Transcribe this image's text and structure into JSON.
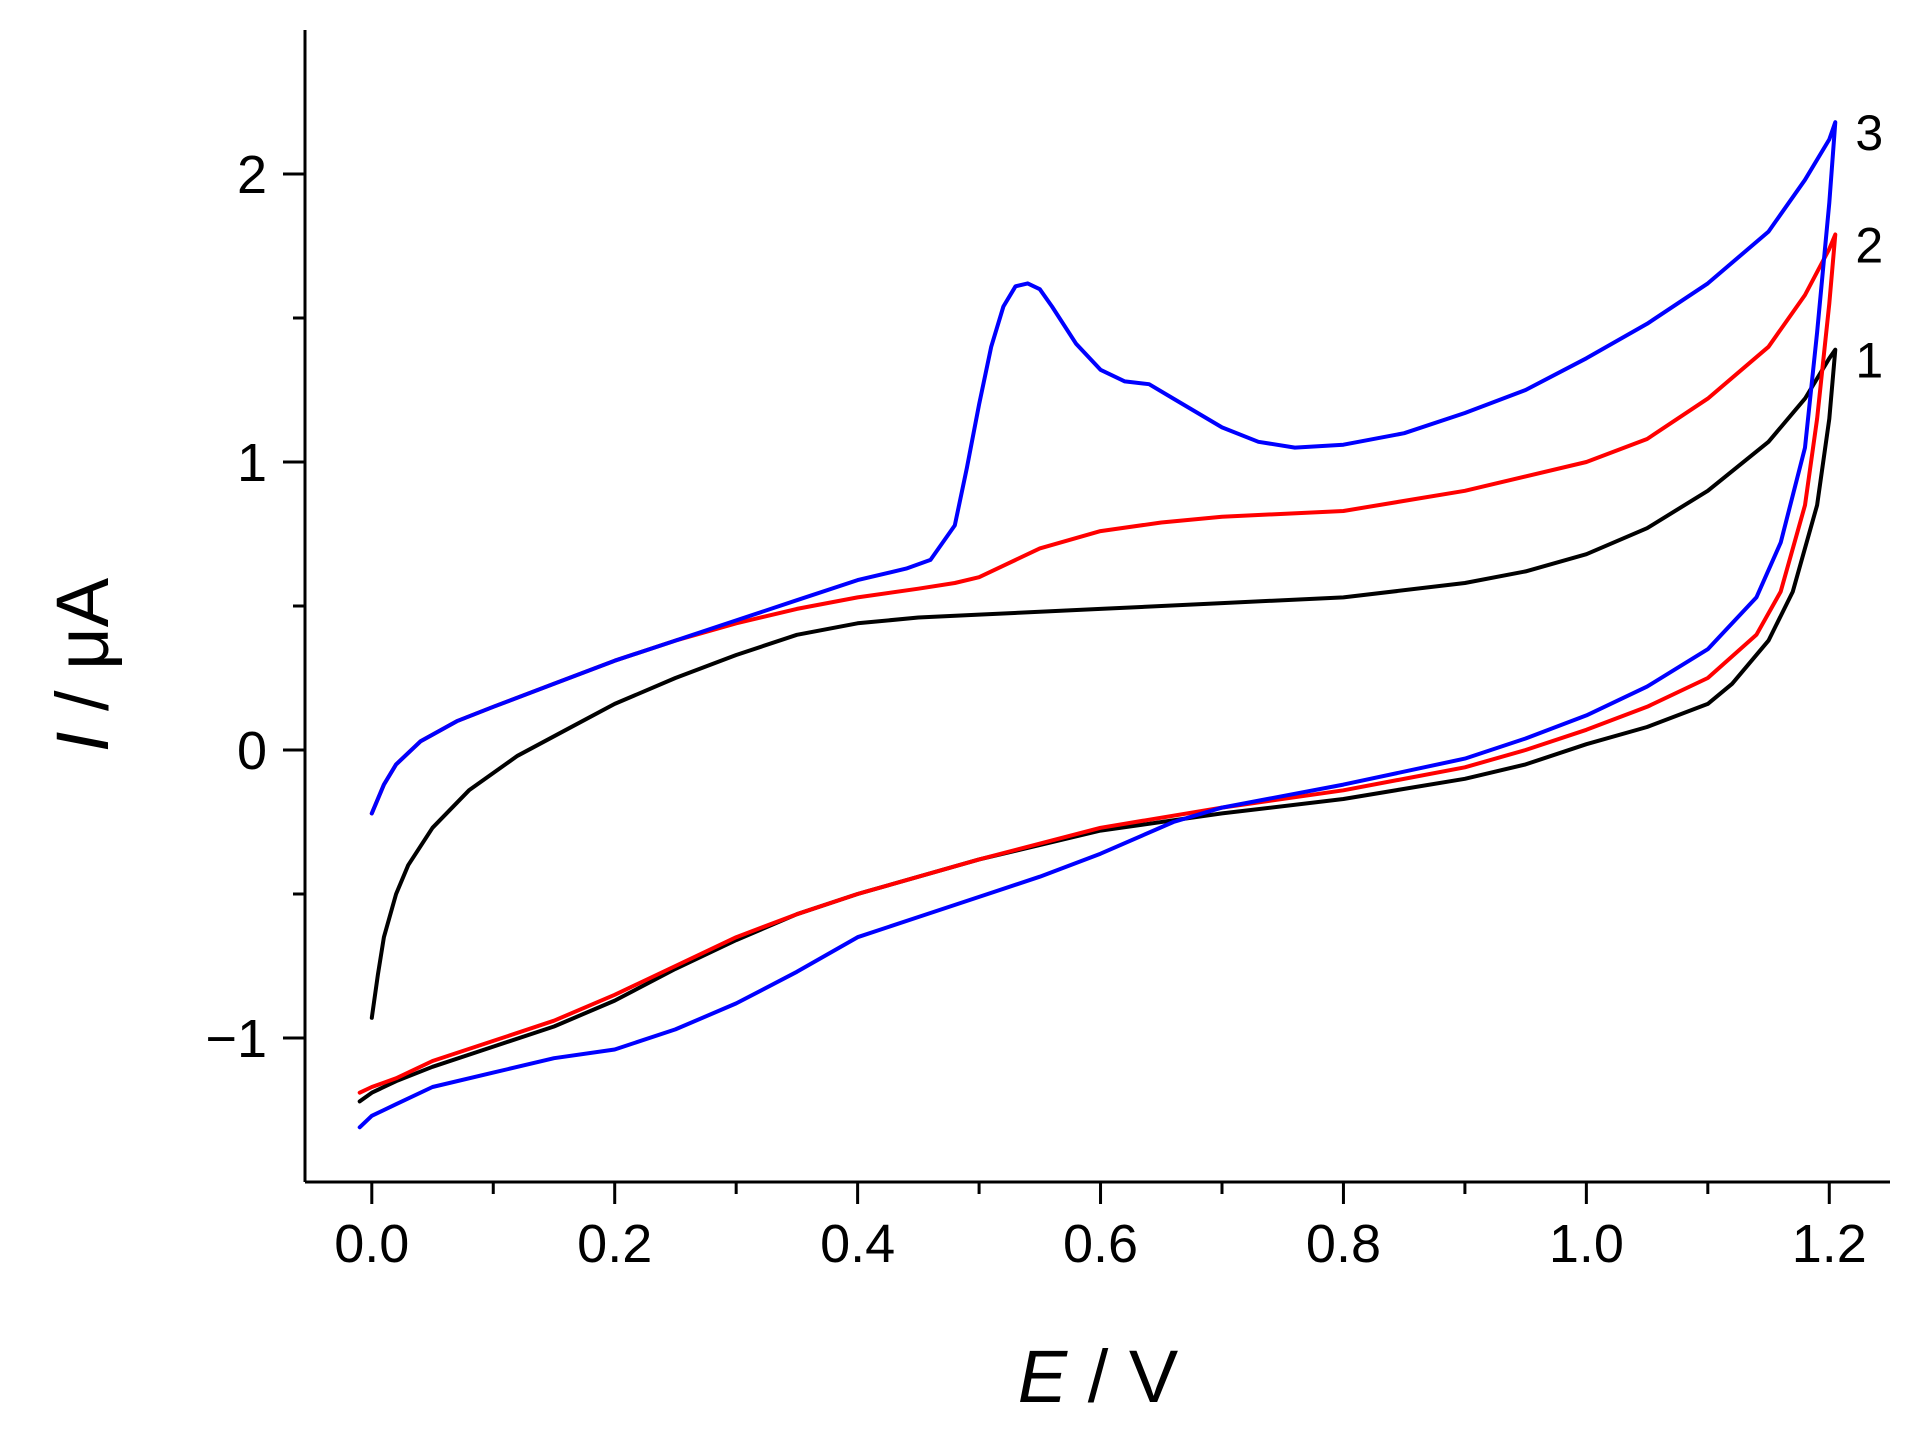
{
  "chart_data": {
    "type": "line",
    "title": "",
    "xlabel": {
      "var": "E",
      "unit": " / V"
    },
    "ylabel": {
      "var": "I",
      "unit": " / μA"
    },
    "xlim": [
      -0.055,
      1.25
    ],
    "ylim": [
      -1.5,
      2.5
    ],
    "x_ticks": [
      {
        "value": 0.0,
        "label": "0.0"
      },
      {
        "value": 0.2,
        "label": "0.2"
      },
      {
        "value": 0.4,
        "label": "0.4"
      },
      {
        "value": 0.6,
        "label": "0.6"
      },
      {
        "value": 0.8,
        "label": "0.8"
      },
      {
        "value": 1.0,
        "label": "1.0"
      },
      {
        "value": 1.2,
        "label": "1.2"
      }
    ],
    "x_minor_ticks": [
      0.1,
      0.3,
      0.5,
      0.7,
      0.9,
      1.1
    ],
    "y_ticks": [
      {
        "value": -1,
        "label": "−1"
      },
      {
        "value": 0,
        "label": "0"
      },
      {
        "value": 1,
        "label": "1"
      },
      {
        "value": 2,
        "label": "2"
      }
    ],
    "y_minor_ticks": [
      -0.5,
      0.5,
      1.5
    ],
    "grid": false,
    "series": [
      {
        "name": "1",
        "color": "#000000",
        "forward": [
          [
            0.0,
            -0.93
          ],
          [
            0.005,
            -0.78
          ],
          [
            0.01,
            -0.65
          ],
          [
            0.02,
            -0.5
          ],
          [
            0.03,
            -0.4
          ],
          [
            0.05,
            -0.27
          ],
          [
            0.08,
            -0.14
          ],
          [
            0.12,
            -0.02
          ],
          [
            0.16,
            0.07
          ],
          [
            0.2,
            0.16
          ],
          [
            0.25,
            0.25
          ],
          [
            0.3,
            0.33
          ],
          [
            0.35,
            0.4
          ],
          [
            0.4,
            0.44
          ],
          [
            0.45,
            0.46
          ],
          [
            0.5,
            0.47
          ],
          [
            0.6,
            0.49
          ],
          [
            0.7,
            0.51
          ],
          [
            0.8,
            0.53
          ],
          [
            0.9,
            0.58
          ],
          [
            0.95,
            0.62
          ],
          [
            1.0,
            0.68
          ],
          [
            1.05,
            0.77
          ],
          [
            1.1,
            0.9
          ],
          [
            1.15,
            1.07
          ],
          [
            1.18,
            1.22
          ],
          [
            1.2,
            1.36
          ],
          [
            1.205,
            1.39
          ]
        ],
        "reverse": [
          [
            1.205,
            1.39
          ],
          [
            1.2,
            1.15
          ],
          [
            1.19,
            0.85
          ],
          [
            1.17,
            0.55
          ],
          [
            1.15,
            0.38
          ],
          [
            1.12,
            0.23
          ],
          [
            1.1,
            0.16
          ],
          [
            1.05,
            0.08
          ],
          [
            1.0,
            0.02
          ],
          [
            0.95,
            -0.05
          ],
          [
            0.9,
            -0.1
          ],
          [
            0.8,
            -0.17
          ],
          [
            0.7,
            -0.22
          ],
          [
            0.6,
            -0.28
          ],
          [
            0.5,
            -0.38
          ],
          [
            0.4,
            -0.5
          ],
          [
            0.35,
            -0.57
          ],
          [
            0.3,
            -0.66
          ],
          [
            0.25,
            -0.76
          ],
          [
            0.2,
            -0.87
          ],
          [
            0.15,
            -0.96
          ],
          [
            0.1,
            -1.03
          ],
          [
            0.05,
            -1.1
          ],
          [
            0.02,
            -1.15
          ],
          [
            0.0,
            -1.19
          ],
          [
            -0.01,
            -1.22
          ]
        ]
      },
      {
        "name": "2",
        "color": "#ff0000",
        "forward": [
          [
            0.0,
            -0.22
          ],
          [
            0.01,
            -0.12
          ],
          [
            0.02,
            -0.05
          ],
          [
            0.04,
            0.03
          ],
          [
            0.07,
            0.1
          ],
          [
            0.1,
            0.15
          ],
          [
            0.15,
            0.23
          ],
          [
            0.2,
            0.31
          ],
          [
            0.25,
            0.38
          ],
          [
            0.3,
            0.44
          ],
          [
            0.35,
            0.49
          ],
          [
            0.4,
            0.53
          ],
          [
            0.45,
            0.56
          ],
          [
            0.48,
            0.58
          ],
          [
            0.5,
            0.6
          ],
          [
            0.52,
            0.64
          ],
          [
            0.55,
            0.7
          ],
          [
            0.6,
            0.76
          ],
          [
            0.65,
            0.79
          ],
          [
            0.7,
            0.81
          ],
          [
            0.8,
            0.83
          ],
          [
            0.9,
            0.9
          ],
          [
            1.0,
            1.0
          ],
          [
            1.05,
            1.08
          ],
          [
            1.1,
            1.22
          ],
          [
            1.15,
            1.4
          ],
          [
            1.18,
            1.58
          ],
          [
            1.2,
            1.74
          ],
          [
            1.205,
            1.79
          ]
        ],
        "reverse": [
          [
            1.205,
            1.79
          ],
          [
            1.2,
            1.55
          ],
          [
            1.19,
            1.15
          ],
          [
            1.18,
            0.85
          ],
          [
            1.16,
            0.55
          ],
          [
            1.14,
            0.4
          ],
          [
            1.1,
            0.25
          ],
          [
            1.05,
            0.15
          ],
          [
            1.0,
            0.07
          ],
          [
            0.95,
            0.0
          ],
          [
            0.9,
            -0.06
          ],
          [
            0.8,
            -0.14
          ],
          [
            0.7,
            -0.2
          ],
          [
            0.6,
            -0.27
          ],
          [
            0.5,
            -0.38
          ],
          [
            0.4,
            -0.5
          ],
          [
            0.35,
            -0.57
          ],
          [
            0.3,
            -0.65
          ],
          [
            0.25,
            -0.75
          ],
          [
            0.2,
            -0.85
          ],
          [
            0.15,
            -0.94
          ],
          [
            0.1,
            -1.01
          ],
          [
            0.05,
            -1.08
          ],
          [
            0.02,
            -1.14
          ],
          [
            0.0,
            -1.17
          ],
          [
            -0.01,
            -1.19
          ]
        ]
      },
      {
        "name": "3",
        "color": "#0000ff",
        "forward": [
          [
            0.0,
            -0.22
          ],
          [
            0.01,
            -0.12
          ],
          [
            0.02,
            -0.05
          ],
          [
            0.04,
            0.03
          ],
          [
            0.07,
            0.1
          ],
          [
            0.1,
            0.15
          ],
          [
            0.15,
            0.23
          ],
          [
            0.2,
            0.31
          ],
          [
            0.25,
            0.38
          ],
          [
            0.3,
            0.45
          ],
          [
            0.35,
            0.52
          ],
          [
            0.4,
            0.59
          ],
          [
            0.44,
            0.63
          ],
          [
            0.46,
            0.66
          ],
          [
            0.48,
            0.78
          ],
          [
            0.49,
            0.98
          ],
          [
            0.5,
            1.2
          ],
          [
            0.51,
            1.4
          ],
          [
            0.52,
            1.54
          ],
          [
            0.53,
            1.61
          ],
          [
            0.54,
            1.62
          ],
          [
            0.55,
            1.6
          ],
          [
            0.56,
            1.54
          ],
          [
            0.58,
            1.41
          ],
          [
            0.6,
            1.32
          ],
          [
            0.62,
            1.28
          ],
          [
            0.64,
            1.27
          ],
          [
            0.66,
            1.22
          ],
          [
            0.7,
            1.12
          ],
          [
            0.73,
            1.07
          ],
          [
            0.76,
            1.05
          ],
          [
            0.8,
            1.06
          ],
          [
            0.85,
            1.1
          ],
          [
            0.9,
            1.17
          ],
          [
            0.95,
            1.25
          ],
          [
            1.0,
            1.36
          ],
          [
            1.05,
            1.48
          ],
          [
            1.1,
            1.62
          ],
          [
            1.15,
            1.8
          ],
          [
            1.18,
            1.98
          ],
          [
            1.2,
            2.12
          ],
          [
            1.205,
            2.18
          ]
        ],
        "reverse": [
          [
            1.205,
            2.18
          ],
          [
            1.2,
            1.9
          ],
          [
            1.19,
            1.45
          ],
          [
            1.18,
            1.05
          ],
          [
            1.16,
            0.72
          ],
          [
            1.14,
            0.53
          ],
          [
            1.1,
            0.35
          ],
          [
            1.05,
            0.22
          ],
          [
            1.0,
            0.12
          ],
          [
            0.95,
            0.04
          ],
          [
            0.9,
            -0.03
          ],
          [
            0.8,
            -0.12
          ],
          [
            0.7,
            -0.2
          ],
          [
            0.66,
            -0.25
          ],
          [
            0.6,
            -0.36
          ],
          [
            0.55,
            -0.44
          ],
          [
            0.5,
            -0.51
          ],
          [
            0.45,
            -0.58
          ],
          [
            0.4,
            -0.65
          ],
          [
            0.35,
            -0.77
          ],
          [
            0.3,
            -0.88
          ],
          [
            0.25,
            -0.97
          ],
          [
            0.2,
            -1.04
          ],
          [
            0.15,
            -1.07
          ],
          [
            0.1,
            -1.12
          ],
          [
            0.05,
            -1.17
          ],
          [
            0.02,
            -1.23
          ],
          [
            0.0,
            -1.27
          ],
          [
            -0.01,
            -1.31
          ]
        ]
      }
    ]
  }
}
